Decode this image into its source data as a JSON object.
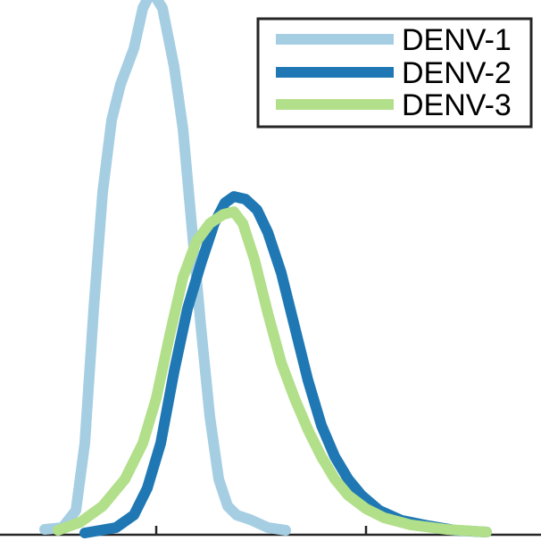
{
  "chart_data": {
    "type": "line",
    "title": "",
    "xlabel": "",
    "ylabel": "",
    "xlim": [
      0,
      606
    ],
    "ylim": [
      0,
      600
    ],
    "grid": false,
    "legend_position": "top-right",
    "series": [
      {
        "name": "DENV-1",
        "color": "#a6cee3",
        "points": [
          [
            50,
            4
          ],
          [
            70,
            6
          ],
          [
            85,
            25
          ],
          [
            95,
            100
          ],
          [
            105,
            250
          ],
          [
            115,
            380
          ],
          [
            125,
            460
          ],
          [
            135,
            500
          ],
          [
            150,
            540
          ],
          [
            160,
            585
          ],
          [
            170,
            604
          ],
          [
            182,
            585
          ],
          [
            195,
            520
          ],
          [
            205,
            450
          ],
          [
            215,
            340
          ],
          [
            225,
            230
          ],
          [
            235,
            130
          ],
          [
            245,
            60
          ],
          [
            255,
            30
          ],
          [
            265,
            20
          ],
          [
            280,
            15
          ],
          [
            300,
            6
          ],
          [
            320,
            3
          ]
        ]
      },
      {
        "name": "DENV-2",
        "color": "#1f78b4",
        "points": [
          [
            95,
            0
          ],
          [
            130,
            6
          ],
          [
            150,
            20
          ],
          [
            165,
            50
          ],
          [
            180,
            100
          ],
          [
            195,
            180
          ],
          [
            210,
            250
          ],
          [
            225,
            300
          ],
          [
            240,
            345
          ],
          [
            252,
            368
          ],
          [
            262,
            375
          ],
          [
            275,
            372
          ],
          [
            288,
            360
          ],
          [
            300,
            335
          ],
          [
            315,
            290
          ],
          [
            330,
            230
          ],
          [
            345,
            170
          ],
          [
            360,
            120
          ],
          [
            375,
            85
          ],
          [
            390,
            60
          ],
          [
            405,
            42
          ],
          [
            425,
            25
          ],
          [
            450,
            14
          ],
          [
            480,
            8
          ],
          [
            510,
            3
          ],
          [
            545,
            1
          ]
        ]
      },
      {
        "name": "DENV-3",
        "color": "#b2df8a",
        "points": [
          [
            65,
            3
          ],
          [
            90,
            12
          ],
          [
            115,
            30
          ],
          [
            140,
            60
          ],
          [
            160,
            100
          ],
          [
            175,
            150
          ],
          [
            190,
            220
          ],
          [
            205,
            285
          ],
          [
            220,
            325
          ],
          [
            235,
            345
          ],
          [
            250,
            355
          ],
          [
            262,
            358
          ],
          [
            272,
            345
          ],
          [
            285,
            305
          ],
          [
            300,
            245
          ],
          [
            315,
            190
          ],
          [
            330,
            150
          ],
          [
            345,
            115
          ],
          [
            360,
            85
          ],
          [
            375,
            60
          ],
          [
            390,
            42
          ],
          [
            410,
            27
          ],
          [
            430,
            17
          ],
          [
            460,
            9
          ],
          [
            500,
            4
          ],
          [
            545,
            1
          ]
        ]
      }
    ],
    "x_ticks": [
      175,
      410
    ],
    "y_ticks": []
  }
}
